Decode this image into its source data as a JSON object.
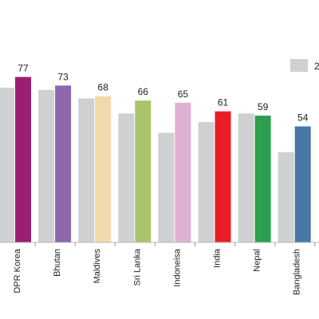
{
  "chart_data": {
    "type": "bar",
    "categories": [
      "DPR Korea",
      "Bhutan",
      "Maldives",
      "Sri Lanka",
      "Indoneisa",
      "India",
      "Nepal",
      "Bangladesh"
    ],
    "series": [
      {
        "name": "2",
        "color": "#cfd0d2",
        "values": [
          72,
          71,
          67,
          60,
          51,
          56,
          60,
          42
        ]
      },
      {
        "name": "",
        "values": [
          77,
          73,
          68,
          66,
          65,
          61,
          59,
          54
        ],
        "colors": [
          "#9c1f74",
          "#8f66ab",
          "#f2d9ad",
          "#a9c46b",
          "#ddb1cf",
          "#ea1d25",
          "#2ca04f",
          "#4878a8"
        ],
        "data_labels": [
          "77",
          "73",
          "68",
          "66",
          "65",
          "61",
          "59",
          "54"
        ]
      }
    ],
    "ylim": [
      0,
      80
    ],
    "xlabel": "",
    "ylabel": "",
    "grid": false,
    "legend_position": "top-right"
  }
}
